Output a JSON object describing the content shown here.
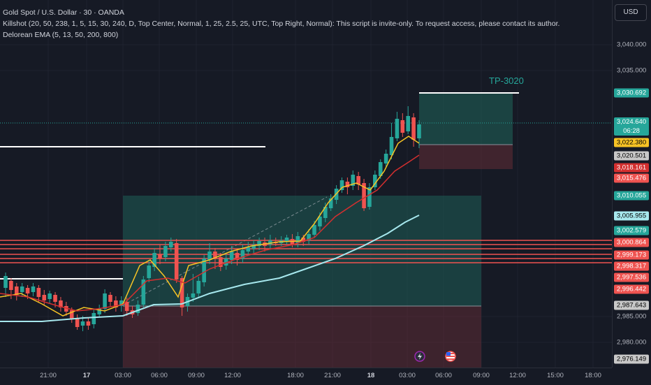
{
  "legend": {
    "symbol": "Gold Spot / U.S. Dollar · 30 · OANDA",
    "indicator1": "Killshot (20, 50, 238, 1, 5, 15, 30, 240, D, Top Center, Normal, 1, 25, 2.5, 25, UTC, Top Right, Normal): This script is invite-only. To request access, please contact its author.",
    "indicator2": "Delorean EMA (5, 13, 50, 200, 800)"
  },
  "currency": "USD",
  "tp_label": "TP-3020",
  "price_ticks": [
    "3,040.000",
    "3,035.000",
    "2,985.000",
    "2,980.000"
  ],
  "price_tags": {
    "t1": "3,030.692",
    "t2_price": "3,024.640",
    "t2_time": "06:28",
    "t3": "3,022.380",
    "t4": "3,020.501",
    "t5": "3,018.161",
    "t6": "3,015.476",
    "t7": "3,010.055",
    "t8": "3,005.955",
    "t9": "3,002.579",
    "t10": "3,000.864",
    "t11": "2,999.173",
    "t12": "2,998.317",
    "t13": "2,997.536",
    "t14": "2,996.442",
    "t15": "2,987.643",
    "t16": "2,976.149"
  },
  "time_ticks": [
    "21:00",
    "17",
    "03:00",
    "06:00",
    "09:00",
    "12:00",
    "18:00",
    "21:00",
    "18",
    "03:00",
    "06:00",
    "09:00",
    "12:00",
    "15:00",
    "18:00"
  ],
  "colors": {
    "up": "#26a69a",
    "down": "#ef5350",
    "ema_fast": "#f7c325",
    "ema_mid": "#d32f2f",
    "ema_slow": "#a7e8ee"
  }
}
